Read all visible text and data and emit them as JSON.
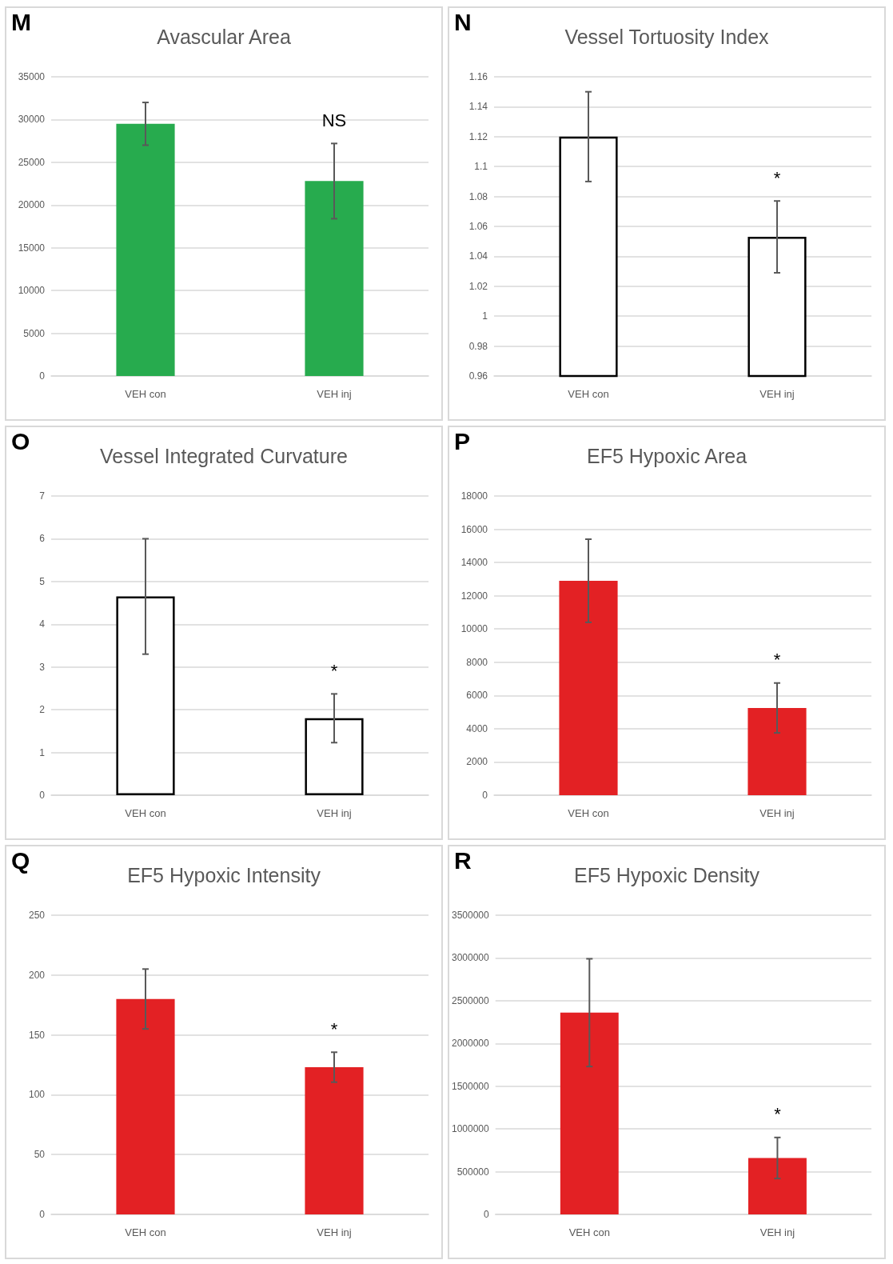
{
  "chart_data": [
    {
      "type": "bar",
      "title": "Avascular Area",
      "categories": [
        "VEH con",
        "VEH inj"
      ],
      "values": [
        29500,
        22800
      ],
      "errors": [
        2500,
        4400
      ],
      "color": "#27ab4e",
      "ylim": [
        0,
        35000
      ],
      "yticks": [
        0,
        5000,
        10000,
        15000,
        20000,
        25000,
        30000,
        35000
      ],
      "grid": "y",
      "annotations": [
        "M",
        "NS"
      ]
    },
    {
      "type": "bar",
      "title": "Vessel Tortuosity Index",
      "categories": [
        "VEH con",
        "VEH inj"
      ],
      "values": [
        1.12,
        1.053
      ],
      "errors": [
        0.03,
        0.024
      ],
      "color": "#ffffff",
      "ylim": [
        0.96,
        1.16
      ],
      "yticks": [
        0.96,
        0.98,
        1,
        1.02,
        1.04,
        1.06,
        1.08,
        1.1,
        1.12,
        1.14,
        1.16
      ],
      "grid": "y",
      "annotations": [
        "N",
        "*"
      ]
    },
    {
      "type": "bar",
      "title": "Vessel Integrated Curvature",
      "categories": [
        "VEH con",
        "VEH inj"
      ],
      "values": [
        4.65,
        1.8
      ],
      "errors": [
        1.35,
        0.57
      ],
      "color": "#ffffff",
      "ylim": [
        0,
        7
      ],
      "yticks": [
        0,
        1,
        2,
        3,
        4,
        5,
        6,
        7
      ],
      "grid": "y",
      "annotations": [
        "O",
        "*"
      ]
    },
    {
      "type": "bar",
      "title": "EF5 Hypoxic Area",
      "categories": [
        "VEH con",
        "VEH inj"
      ],
      "values": [
        12900,
        5250
      ],
      "errors": [
        2500,
        1500
      ],
      "color": "#e32124",
      "ylim": [
        0,
        18000
      ],
      "yticks": [
        0,
        2000,
        4000,
        6000,
        8000,
        10000,
        12000,
        14000,
        16000,
        18000
      ],
      "grid": "y",
      "annotations": [
        "P",
        "*"
      ]
    },
    {
      "type": "bar",
      "title": "EF5 Hypoxic Intensity",
      "categories": [
        "VEH con",
        "VEH inj"
      ],
      "values": [
        180,
        123
      ],
      "errors": [
        25,
        12.5
      ],
      "color": "#e32124",
      "ylim": [
        0,
        250
      ],
      "yticks": [
        0,
        50,
        100,
        150,
        200,
        250
      ],
      "grid": "y",
      "annotations": [
        "Q",
        "*"
      ]
    },
    {
      "type": "bar",
      "title": "EF5 Hypoxic Density",
      "categories": [
        "VEH con",
        "VEH inj"
      ],
      "values": [
        2360000,
        660000
      ],
      "errors": [
        630000,
        240000
      ],
      "color": "#e32124",
      "ylim": [
        0,
        3500000
      ],
      "yticks": [
        0,
        500000,
        1000000,
        1500000,
        2000000,
        2500000,
        3000000,
        3500000
      ],
      "grid": "y",
      "annotations": [
        "R",
        "*"
      ]
    }
  ]
}
